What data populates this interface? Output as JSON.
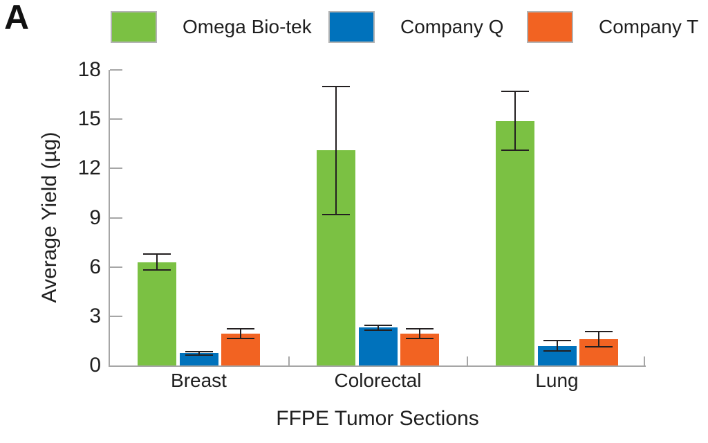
{
  "panel_label": "A",
  "legend": [
    {
      "label": "Omega Bio-tek",
      "color": "#7bc143"
    },
    {
      "label": "Company Q",
      "color": "#0072bc"
    },
    {
      "label": "Company T",
      "color": "#f26322"
    }
  ],
  "chart_data": {
    "type": "bar",
    "title": "",
    "xlabel": "FFPE Tumor Sections",
    "ylabel": "Average Yield (µg)",
    "ylim": [
      0,
      18
    ],
    "yticks": [
      0,
      3,
      6,
      9,
      12,
      15,
      18
    ],
    "categories": [
      "Breast",
      "Colorectal",
      "Lung"
    ],
    "series": [
      {
        "name": "Omega Bio-tek",
        "color": "#7bc143",
        "values": [
          6.3,
          13.1,
          14.9
        ],
        "errors": [
          0.5,
          3.9,
          1.8
        ]
      },
      {
        "name": "Company Q",
        "color": "#0072bc",
        "values": [
          0.75,
          2.3,
          1.2
        ],
        "errors": [
          0.1,
          0.15,
          0.3
        ]
      },
      {
        "name": "Company T",
        "color": "#f26322",
        "values": [
          1.95,
          1.95,
          1.6
        ],
        "errors": [
          0.3,
          0.3,
          0.45
        ]
      }
    ],
    "legend_position": "top",
    "grid": false,
    "error_bars": true
  }
}
